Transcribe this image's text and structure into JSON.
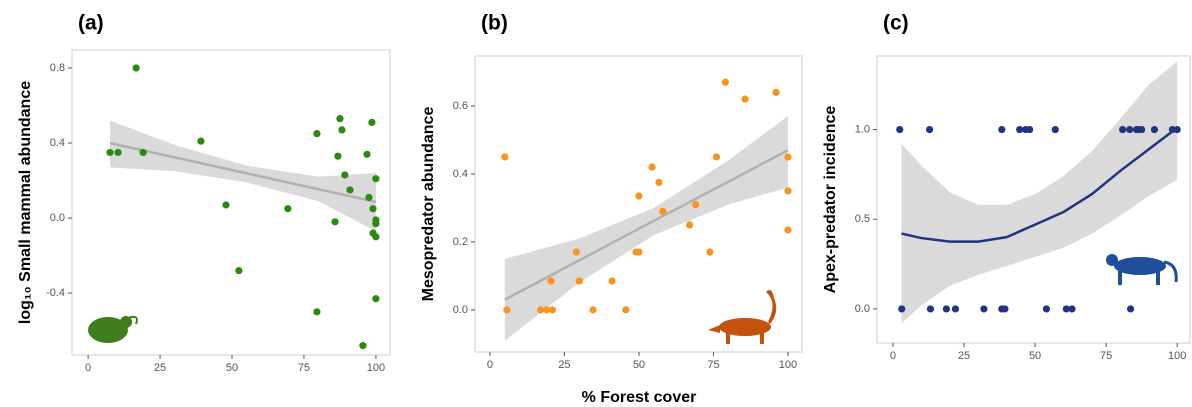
{
  "chart_data": [
    {
      "type": "scatter",
      "panel_label": "(a)",
      "ylabel": "log₁₀ Small mammal abundance",
      "color": "#2a8a12",
      "x": [
        16.7,
        7.6,
        10.4,
        19.1,
        39.2,
        47.9,
        52.4,
        69.4,
        79.5,
        79.5,
        85.8,
        86.8,
        87.5,
        88.2,
        89.2,
        91,
        95.5,
        96.9,
        97.6,
        98.6,
        99,
        99,
        100,
        100,
        100,
        100,
        100
      ],
      "values": [
        0.8,
        0.35,
        0.35,
        0.35,
        0.41,
        0.07,
        -0.28,
        0.05,
        0.45,
        -0.5,
        -0.02,
        0.33,
        0.53,
        0.47,
        0.23,
        0.15,
        -0.68,
        0.34,
        0.11,
        0.51,
        0.05,
        -0.08,
        0.21,
        -0.01,
        -0.03,
        -0.1,
        -0.43
      ],
      "fit": {
        "color": "#b0b0b0",
        "x": [
          7.6,
          30,
          55,
          80,
          100
        ],
        "values": [
          0.4,
          0.324,
          0.239,
          0.154,
          0.086
        ],
        "upper": [
          0.52,
          0.39,
          0.28,
          0.22,
          0.24
        ],
        "lower": [
          0.27,
          0.25,
          0.19,
          0.09,
          -0.07
        ]
      },
      "xlim": [
        -5.6,
        104.9
      ],
      "ylim": [
        -0.73,
        0.896
      ],
      "xticks": [
        0,
        25,
        50,
        75,
        100
      ],
      "yticks": [
        -0.4,
        {
          "value": 0,
          "label": "0.0"
        },
        0.4,
        0.8
      ]
    },
    {
      "type": "scatter",
      "panel_label": "(b)",
      "ylabel": "Mesopredator abundance",
      "color": "#f7941d",
      "x": [
        5,
        5.7,
        17,
        19,
        21,
        20.5,
        29,
        30,
        34.6,
        41,
        45.6,
        49,
        50,
        50,
        54.4,
        56.7,
        58,
        67,
        69,
        73.8,
        76,
        79,
        85.6,
        96,
        100,
        100,
        100
      ],
      "values": [
        0.45,
        0,
        0,
        0,
        0,
        0.085,
        0.17,
        0.085,
        0,
        0.085,
        0,
        0.17,
        0.17,
        0.335,
        0.42,
        0.375,
        0.29,
        0.25,
        0.31,
        0.17,
        0.45,
        0.67,
        0.62,
        0.64,
        0.45,
        0.35,
        0.235
      ],
      "fit": {
        "color": "#b0b0b0",
        "x": [
          5,
          30,
          55,
          80,
          100
        ],
        "values": [
          0.03,
          0.146,
          0.262,
          0.377,
          0.47
        ],
        "upper": [
          0.15,
          0.21,
          0.3,
          0.44,
          0.57
        ],
        "lower": [
          -0.09,
          0.08,
          0.22,
          0.31,
          0.36
        ]
      },
      "xlim": [
        -5,
        104.7
      ],
      "ylim": [
        -0.124,
        0.747
      ],
      "xticks": [
        0,
        25,
        50,
        75,
        100
      ],
      "yticks": [
        {
          "value": 0,
          "label": "0.0"
        },
        0.2,
        0.4,
        0.6
      ]
    },
    {
      "type": "scatter",
      "panel_label": "(c)",
      "ylabel": "Apex-predator incidence",
      "color": "#22337f",
      "x": [
        2.4,
        12.9,
        38.3,
        44.6,
        46.7,
        48.1,
        57.1,
        80.8,
        83.3,
        85.7,
        86.4,
        87.5,
        92,
        98.3,
        100,
        3.1,
        13.2,
        18.8,
        22,
        32,
        38.3,
        39.4,
        54,
        61,
        63,
        83.6
      ],
      "values": [
        1,
        1,
        1,
        1,
        1,
        1,
        1,
        1,
        1,
        1,
        1,
        1,
        1,
        1,
        1,
        0,
        0,
        0,
        0,
        0,
        0,
        0,
        0,
        0,
        0,
        0
      ],
      "fit": {
        "color": "#22337f",
        "x": [
          3,
          10,
          20,
          30,
          40,
          50,
          60,
          70,
          80,
          90,
          100
        ],
        "values": [
          0.42,
          0.395,
          0.375,
          0.375,
          0.4,
          0.47,
          0.54,
          0.64,
          0.77,
          0.89,
          1.01
        ],
        "upper": [
          0.92,
          0.8,
          0.65,
          0.58,
          0.58,
          0.64,
          0.74,
          0.88,
          1.06,
          1.25,
          1.38
        ],
        "lower": [
          -0.08,
          0.02,
          0.13,
          0.19,
          0.24,
          0.29,
          0.34,
          0.42,
          0.52,
          0.63,
          0.72
        ]
      },
      "xlim": [
        -5.6,
        104.5
      ],
      "ylim": [
        -0.19,
        1.41
      ],
      "xticks": [
        0,
        25,
        50,
        75,
        100
      ],
      "yticks": [
        {
          "value": 0,
          "label": "0.0"
        },
        0.5,
        {
          "value": 1,
          "label": "1.0"
        }
      ]
    }
  ],
  "shared_xlabel": "% Forest cover"
}
